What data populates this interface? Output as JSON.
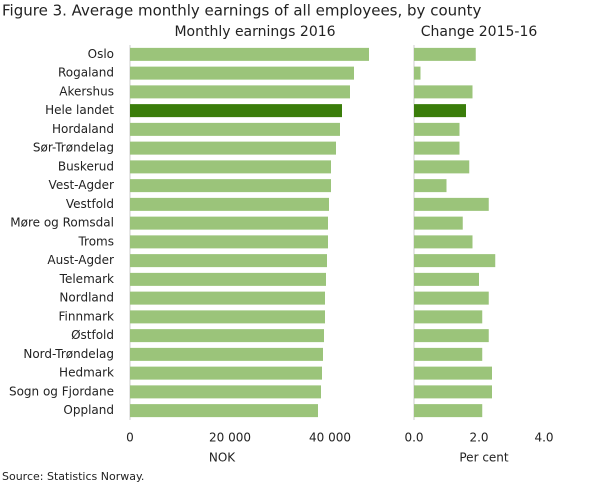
{
  "title": "Figure 3. Average monthly earnings of all employees, by county",
  "source": "Source: Statistics Norway.",
  "chart_data": [
    {
      "type": "bar",
      "orientation": "horizontal",
      "title": "Monthly earnings 2016",
      "xlabel": "NOK",
      "categories": [
        "Oslo",
        "Rogaland",
        "Akershus",
        "Hele landet",
        "Hordaland",
        "Sør-Trøndelag",
        "Buskerud",
        "Vest-Agder",
        "Vestfold",
        "Møre og Romsdal",
        "Troms",
        "Aust-Agder",
        "Telemark",
        "Nordland",
        "Finnmark",
        "Østfold",
        "Nord-Trøndelag",
        "Hedmark",
        "Sogn og Fjordane",
        "Oppland"
      ],
      "values": [
        47800,
        44800,
        44000,
        42400,
        42000,
        41200,
        40200,
        40200,
        39800,
        39600,
        39600,
        39400,
        39200,
        39000,
        39000,
        38800,
        38600,
        38400,
        38200,
        37600
      ],
      "colors": [
        "#9bc47a",
        "#9bc47a",
        "#9bc47a",
        "#3a7d0a",
        "#9bc47a",
        "#9bc47a",
        "#9bc47a",
        "#9bc47a",
        "#9bc47a",
        "#9bc47a",
        "#9bc47a",
        "#9bc47a",
        "#9bc47a",
        "#9bc47a",
        "#9bc47a",
        "#9bc47a",
        "#9bc47a",
        "#9bc47a",
        "#9bc47a",
        "#9bc47a"
      ],
      "xlim": [
        0,
        50000
      ],
      "xticks": [
        0,
        {
          "value": 20000,
          "label": "20 000"
        },
        {
          "value": 40000,
          "label": "40 000"
        }
      ]
    },
    {
      "type": "bar",
      "orientation": "horizontal",
      "title": "Change 2015-16",
      "xlabel": "Per cent",
      "values": [
        1.9,
        0.2,
        1.8,
        1.6,
        1.4,
        1.4,
        1.7,
        1.0,
        2.3,
        1.5,
        1.8,
        2.5,
        2.0,
        2.3,
        2.1,
        2.3,
        2.1,
        2.4,
        2.4,
        2.1
      ],
      "colors": [
        "#9bc47a",
        "#9bc47a",
        "#9bc47a",
        "#3a7d0a",
        "#9bc47a",
        "#9bc47a",
        "#9bc47a",
        "#9bc47a",
        "#9bc47a",
        "#9bc47a",
        "#9bc47a",
        "#9bc47a",
        "#9bc47a",
        "#9bc47a",
        "#9bc47a",
        "#9bc47a",
        "#9bc47a",
        "#9bc47a",
        "#9bc47a",
        "#9bc47a"
      ],
      "xlim": [
        0,
        4
      ],
      "xticks": [
        {
          "value": 0,
          "label": "0.0"
        },
        {
          "value": 2,
          "label": "2.0"
        },
        {
          "value": 4,
          "label": "4.0"
        }
      ]
    }
  ]
}
